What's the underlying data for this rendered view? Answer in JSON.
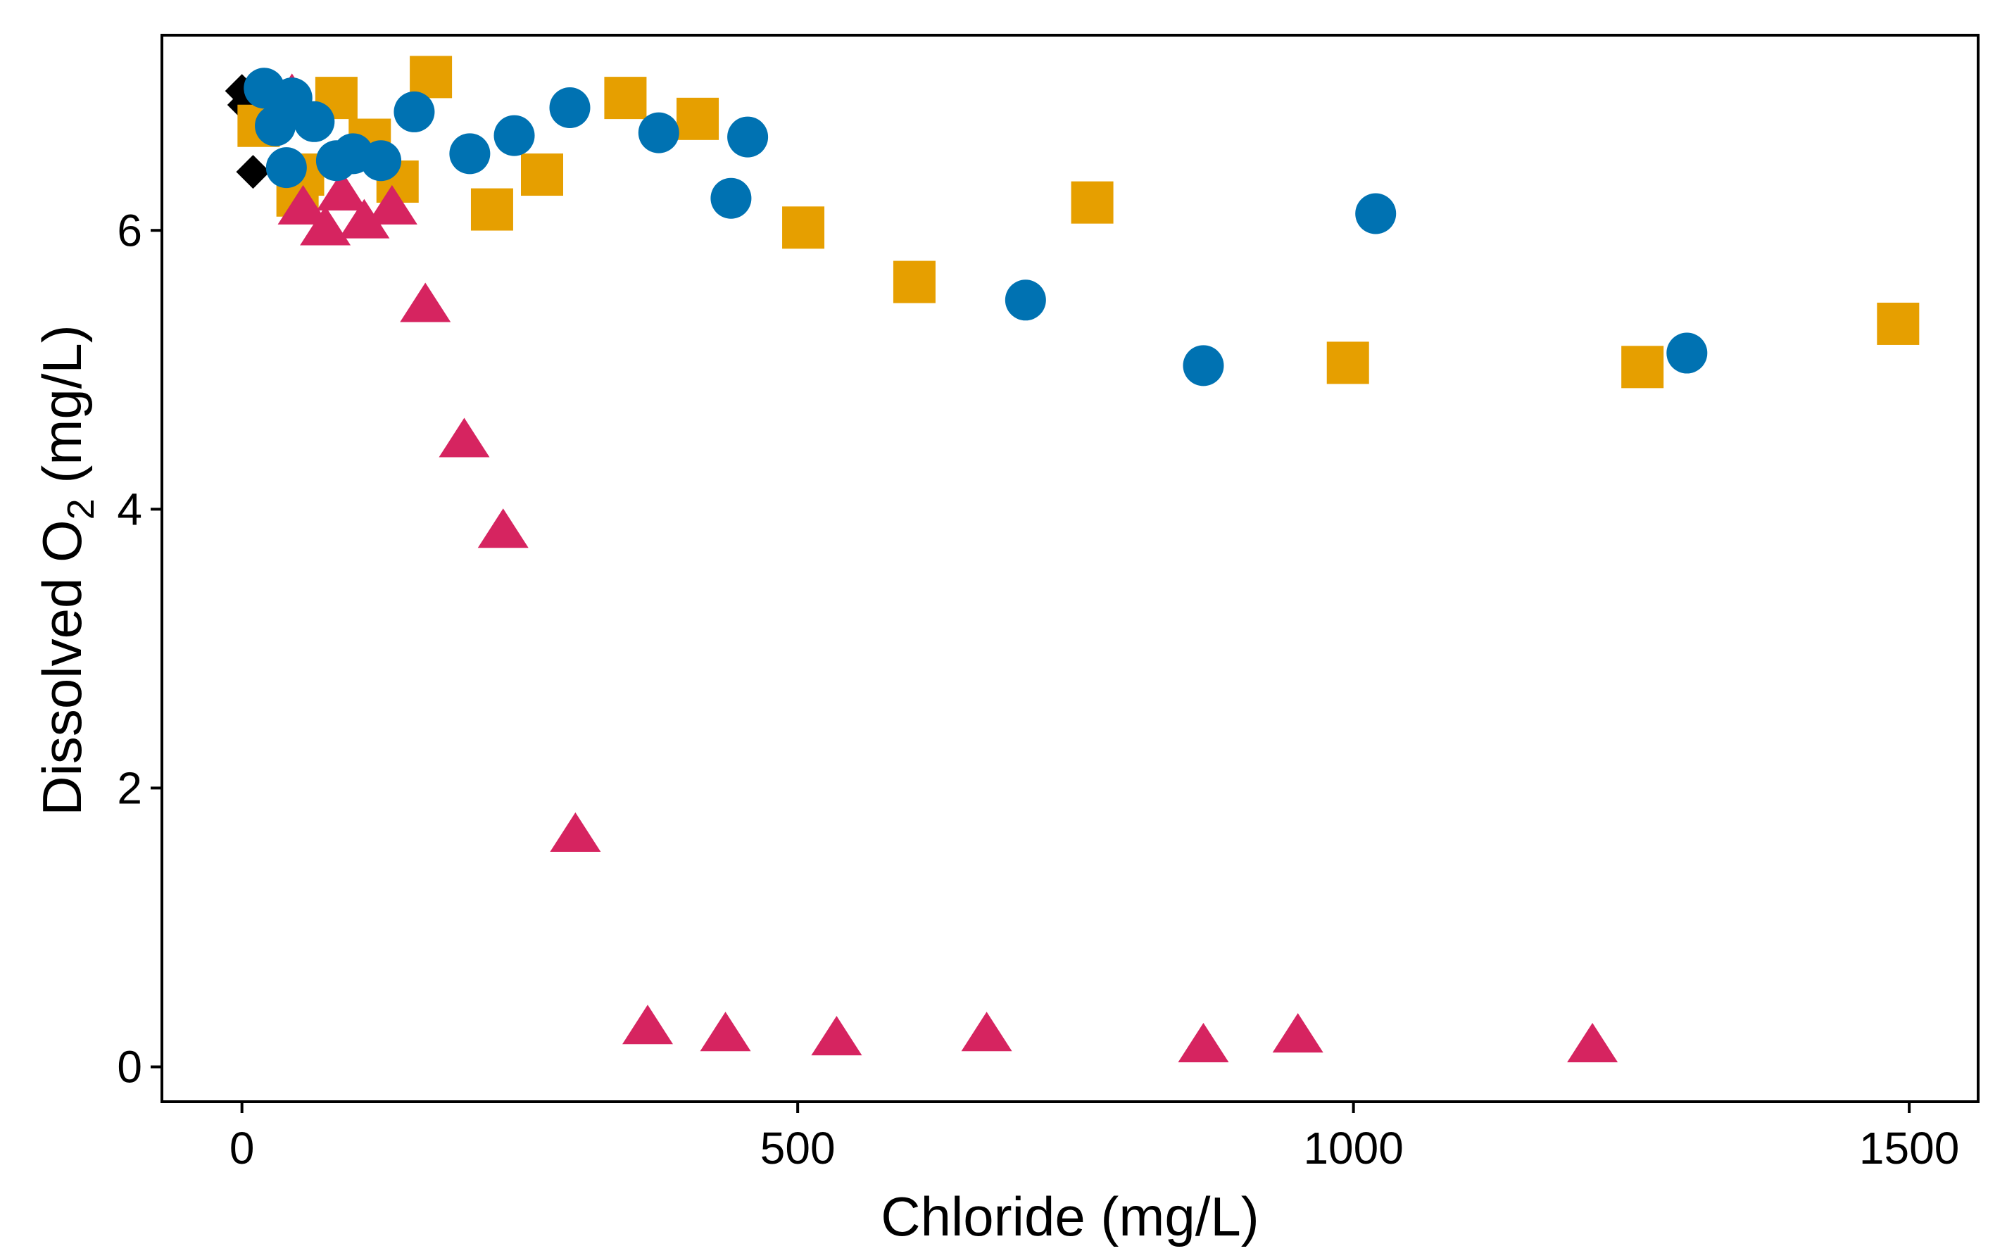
{
  "chart_data": {
    "type": "scatter",
    "title": "",
    "xlabel": "Chloride (mg/L)",
    "ylabel_main": "Dissolved O",
    "ylabel_sub": "2",
    "ylabel_suffix": " (mg/L)",
    "xlim": [
      -72,
      1562
    ],
    "ylim": [
      -0.25,
      7.4
    ],
    "xticks": [
      0,
      500,
      1000,
      1500
    ],
    "xtick_labels": [
      "0",
      "500",
      "1000",
      "1500"
    ],
    "yticks": [
      0,
      2,
      4,
      6
    ],
    "ytick_labels": [
      "0",
      "2",
      "4",
      "6"
    ],
    "grid": false,
    "legend": "none",
    "series": [
      {
        "name": "diamond-series",
        "marker": "diamond",
        "color": "#000000",
        "x": [
          0,
          2,
          10
        ],
        "y": [
          7.0,
          6.9,
          6.42
        ]
      },
      {
        "name": "square-series",
        "marker": "square",
        "color": "#E69F00",
        "x": [
          15,
          85,
          115,
          50,
          55,
          140,
          170,
          225,
          270,
          345,
          410,
          505,
          605,
          765,
          995,
          1260,
          1490
        ],
        "y": [
          6.75,
          6.95,
          6.65,
          6.25,
          6.4,
          6.35,
          7.1,
          6.15,
          6.4,
          6.95,
          6.8,
          6.02,
          5.63,
          6.2,
          5.05,
          5.02,
          5.33
        ]
      },
      {
        "name": "triangle-series",
        "marker": "triangle",
        "color": "#D62460",
        "x": [
          45,
          55,
          75,
          90,
          110,
          135,
          165,
          200,
          235,
          300,
          365,
          435,
          535,
          670,
          865,
          950,
          1215
        ],
        "y": [
          6.95,
          6.15,
          6.0,
          6.25,
          6.05,
          6.15,
          5.45,
          4.48,
          3.83,
          1.65,
          0.27,
          0.22,
          0.19,
          0.22,
          0.14,
          0.21,
          0.14
        ]
      },
      {
        "name": "circle-series",
        "marker": "circle",
        "color": "#0072B2",
        "x": [
          20,
          30,
          45,
          40,
          65,
          85,
          100,
          125,
          155,
          205,
          245,
          295,
          375,
          440,
          455,
          705,
          865,
          1020,
          1300
        ],
        "y": [
          7.02,
          6.75,
          6.95,
          6.45,
          6.78,
          6.5,
          6.55,
          6.5,
          6.85,
          6.55,
          6.68,
          6.88,
          6.7,
          6.23,
          6.67,
          5.5,
          5.03,
          6.12,
          5.12
        ]
      }
    ]
  }
}
